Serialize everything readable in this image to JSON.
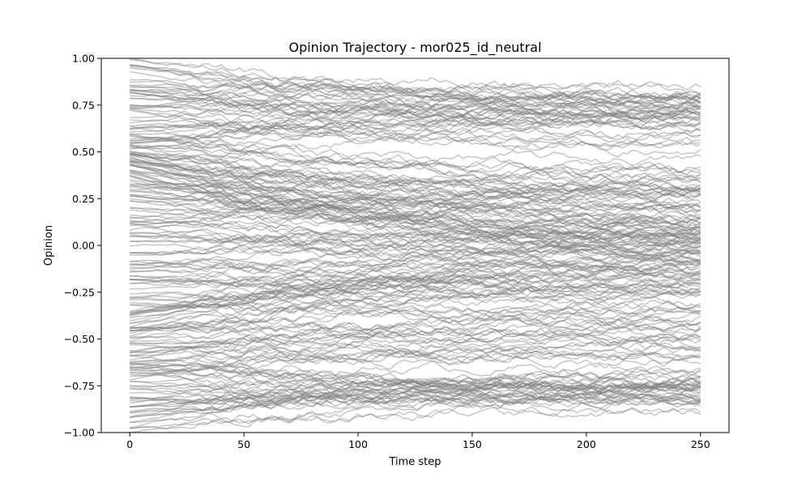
{
  "chart_data": {
    "type": "line",
    "title": "Opinion Trajectory - mor025_id_neutral",
    "xlabel": "Time step",
    "ylabel": "Opinion",
    "xlim": [
      -12.5,
      262.5
    ],
    "ylim": [
      -1.0,
      1.0
    ],
    "x_ticks": [
      0,
      50,
      100,
      150,
      200,
      250
    ],
    "x_tick_labels": [
      "0",
      "50",
      "100",
      "150",
      "200",
      "250"
    ],
    "y_ticks": [
      -1.0,
      -0.75,
      -0.5,
      -0.25,
      0.0,
      0.25,
      0.5,
      0.75,
      1.0
    ],
    "y_tick_labels": [
      "−1.00",
      "−0.75",
      "−0.50",
      "−0.25",
      "0.00",
      "0.25",
      "0.50",
      "0.75",
      "1.00"
    ],
    "grid": false,
    "line_color": "#808080",
    "line_opacity": 0.45,
    "x_range": [
      0,
      250
    ],
    "series": [
      {
        "start": 0.95,
        "end": 0.78
      },
      {
        "start": 0.88,
        "end": 0.8
      },
      {
        "start": 0.82,
        "end": 0.76
      },
      {
        "start": 0.78,
        "end": 0.74
      },
      {
        "start": 0.72,
        "end": 0.72
      },
      {
        "start": 0.65,
        "end": 0.75
      },
      {
        "start": 0.6,
        "end": 0.7
      },
      {
        "start": 0.55,
        "end": 0.62
      },
      {
        "start": 0.5,
        "end": 0.45
      },
      {
        "start": 0.48,
        "end": 0.28
      },
      {
        "start": 0.45,
        "end": 0.22
      },
      {
        "start": 0.42,
        "end": 0.15
      },
      {
        "start": 0.4,
        "end": 0.1
      },
      {
        "start": 0.38,
        "end": 0.05
      },
      {
        "start": 0.35,
        "end": 0.0
      },
      {
        "start": 0.32,
        "end": 0.35
      },
      {
        "start": 0.3,
        "end": 0.2
      },
      {
        "start": 0.25,
        "end": 0.12
      },
      {
        "start": 0.2,
        "end": 0.08
      },
      {
        "start": 0.15,
        "end": 0.02
      },
      {
        "start": 0.1,
        "end": -0.02
      },
      {
        "start": 0.05,
        "end": 0.0
      },
      {
        "start": 0.0,
        "end": 0.04
      },
      {
        "start": -0.05,
        "end": -0.05
      },
      {
        "start": -0.1,
        "end": -0.08
      },
      {
        "start": -0.15,
        "end": -0.12
      },
      {
        "start": -0.22,
        "end": -0.18
      },
      {
        "start": -0.28,
        "end": -0.25
      },
      {
        "start": -0.32,
        "end": -0.35
      },
      {
        "start": -0.36,
        "end": -0.15
      },
      {
        "start": -0.4,
        "end": -0.1
      },
      {
        "start": -0.42,
        "end": -0.3
      },
      {
        "start": -0.45,
        "end": -0.42
      },
      {
        "start": -0.5,
        "end": -0.48
      },
      {
        "start": -0.55,
        "end": -0.55
      },
      {
        "start": -0.6,
        "end": -0.62
      },
      {
        "start": -0.65,
        "end": -0.7
      },
      {
        "start": -0.7,
        "end": -0.75
      },
      {
        "start": -0.75,
        "end": -0.78
      },
      {
        "start": -0.8,
        "end": -0.8
      },
      {
        "start": -0.85,
        "end": -0.82
      },
      {
        "start": -0.9,
        "end": -0.76
      },
      {
        "start": -0.95,
        "end": -0.72
      },
      {
        "start": 0.7,
        "end": 0.55
      },
      {
        "start": 0.62,
        "end": 0.4
      },
      {
        "start": 0.52,
        "end": 0.3
      },
      {
        "start": -0.58,
        "end": -0.4
      },
      {
        "start": -0.68,
        "end": -0.5
      },
      {
        "start": -0.48,
        "end": -0.2
      },
      {
        "start": 0.46,
        "end": 0.18
      },
      {
        "start": -0.38,
        "end": -0.05
      },
      {
        "start": 0.98,
        "end": 0.82
      },
      {
        "start": -0.98,
        "end": -0.85
      },
      {
        "start": 0.84,
        "end": 0.65
      },
      {
        "start": -0.88,
        "end": -0.68
      },
      {
        "start": 0.12,
        "end": 0.25
      },
      {
        "start": -0.18,
        "end": -0.28
      },
      {
        "start": 0.58,
        "end": 0.72
      },
      {
        "start": -0.62,
        "end": -0.74
      },
      {
        "start": 0.44,
        "end": 0.05
      }
    ]
  }
}
